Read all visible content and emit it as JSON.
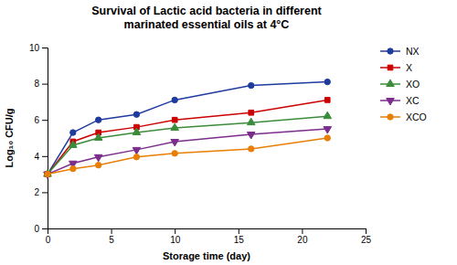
{
  "chart_data": {
    "type": "line",
    "title": "Survival of Lactic acid bacteria in different\nmarinated essential oils at 4°C",
    "xlabel": "Storage time (day)",
    "ylabel": "Log₁₀ CFU/g",
    "x": [
      0,
      2,
      4,
      7,
      10,
      16,
      22
    ],
    "xlim": [
      0,
      25
    ],
    "ylim": [
      0,
      10
    ],
    "xticks": [
      0,
      5,
      10,
      15,
      20,
      25
    ],
    "yticks": [
      0,
      2,
      4,
      6,
      8,
      10
    ],
    "grid": false,
    "legend": "right",
    "series": [
      {
        "name": "NX",
        "color": "#1f3b9e",
        "marker": "circle",
        "values": [
          3.0,
          5.3,
          6.0,
          6.3,
          7.1,
          7.9,
          8.1
        ],
        "errors": [
          0.05,
          0.08,
          0.08,
          0.07,
          0.08,
          0.07,
          0.07
        ]
      },
      {
        "name": "X",
        "color": "#cc0000",
        "marker": "square",
        "values": [
          3.0,
          4.8,
          5.3,
          5.6,
          6.0,
          6.4,
          7.1
        ],
        "errors": [
          0.05,
          0.08,
          0.08,
          0.08,
          0.1,
          0.1,
          0.08
        ]
      },
      {
        "name": "XO",
        "color": "#3a8c3a",
        "marker": "triangle-up",
        "values": [
          3.0,
          4.6,
          5.0,
          5.3,
          5.55,
          5.85,
          6.2
        ],
        "errors": [
          0.05,
          0.07,
          0.07,
          0.07,
          0.07,
          0.07,
          0.08
        ]
      },
      {
        "name": "XC",
        "color": "#7b2d8b",
        "marker": "triangle-down",
        "values": [
          3.0,
          3.6,
          3.95,
          4.35,
          4.8,
          5.2,
          5.5
        ],
        "errors": [
          0.05,
          0.08,
          0.08,
          0.07,
          0.08,
          0.08,
          0.07
        ]
      },
      {
        "name": "XCO",
        "color": "#e87e04",
        "marker": "circle",
        "values": [
          3.0,
          3.3,
          3.5,
          3.95,
          4.15,
          4.4,
          5.0
        ],
        "errors": [
          0.05,
          0.07,
          0.07,
          0.07,
          0.07,
          0.07,
          0.07
        ]
      }
    ]
  }
}
